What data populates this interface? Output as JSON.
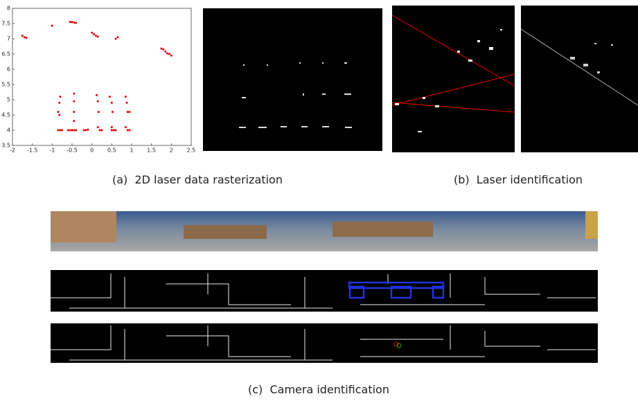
{
  "figure": {
    "panel_a": {
      "scatter": {
        "type": "scatter",
        "color": "#e00000",
        "xlim": [
          -2,
          2.5
        ],
        "ylim": [
          3.5,
          8
        ],
        "xticks": [
          -2,
          -1.5,
          -1,
          -0.5,
          0,
          0.5,
          1,
          1.5,
          2,
          2.5
        ],
        "yticks": [
          3.5,
          4,
          4.5,
          5,
          5.5,
          6,
          6.5,
          7,
          7.5,
          8
        ],
        "x": [
          -1.75,
          -1.7,
          -1.65,
          -1.0,
          -0.55,
          -0.5,
          -0.45,
          -0.4,
          0.0,
          0.05,
          0.1,
          0.15,
          0.6,
          0.65,
          1.75,
          1.8,
          1.85,
          1.9,
          1.95,
          2.0,
          -0.8,
          -0.82,
          -0.85,
          -0.82,
          -0.85,
          -0.8,
          -0.75,
          -0.45,
          -0.45,
          -0.45,
          -0.45,
          -0.6,
          -0.55,
          -0.5,
          -0.45,
          -0.4,
          -0.2,
          -0.15,
          -0.1,
          0.12,
          0.15,
          0.17,
          0.15,
          0.2,
          0.25,
          0.45,
          0.5,
          0.52,
          0.5,
          0.5,
          0.55,
          0.6,
          0.85,
          0.88,
          0.9,
          0.95,
          0.85,
          0.9,
          0.95
        ],
        "y": [
          7.1,
          7.05,
          7.03,
          7.43,
          7.55,
          7.55,
          7.53,
          7.52,
          7.2,
          7.15,
          7.1,
          7.07,
          7.0,
          7.05,
          6.68,
          6.65,
          6.58,
          6.52,
          6.5,
          6.45,
          5.1,
          4.9,
          4.6,
          4.5,
          4.0,
          4.0,
          4.0,
          5.2,
          4.95,
          4.6,
          4.3,
          4.0,
          4.0,
          4.0,
          4.0,
          4.0,
          4.0,
          4.0,
          4.02,
          5.15,
          4.95,
          4.6,
          4.1,
          4.0,
          4.0,
          5.1,
          4.9,
          4.6,
          4.1,
          4.0,
          4.0,
          4.0,
          5.1,
          4.9,
          4.6,
          4.6,
          4.1,
          4.0,
          4.0
        ]
      },
      "caption": "(a)  2D laser data rasterization"
    },
    "panel_b": {
      "caption": "(b)  Laser identification"
    },
    "panel_c": {
      "caption": "(c)  Camera identification"
    }
  }
}
